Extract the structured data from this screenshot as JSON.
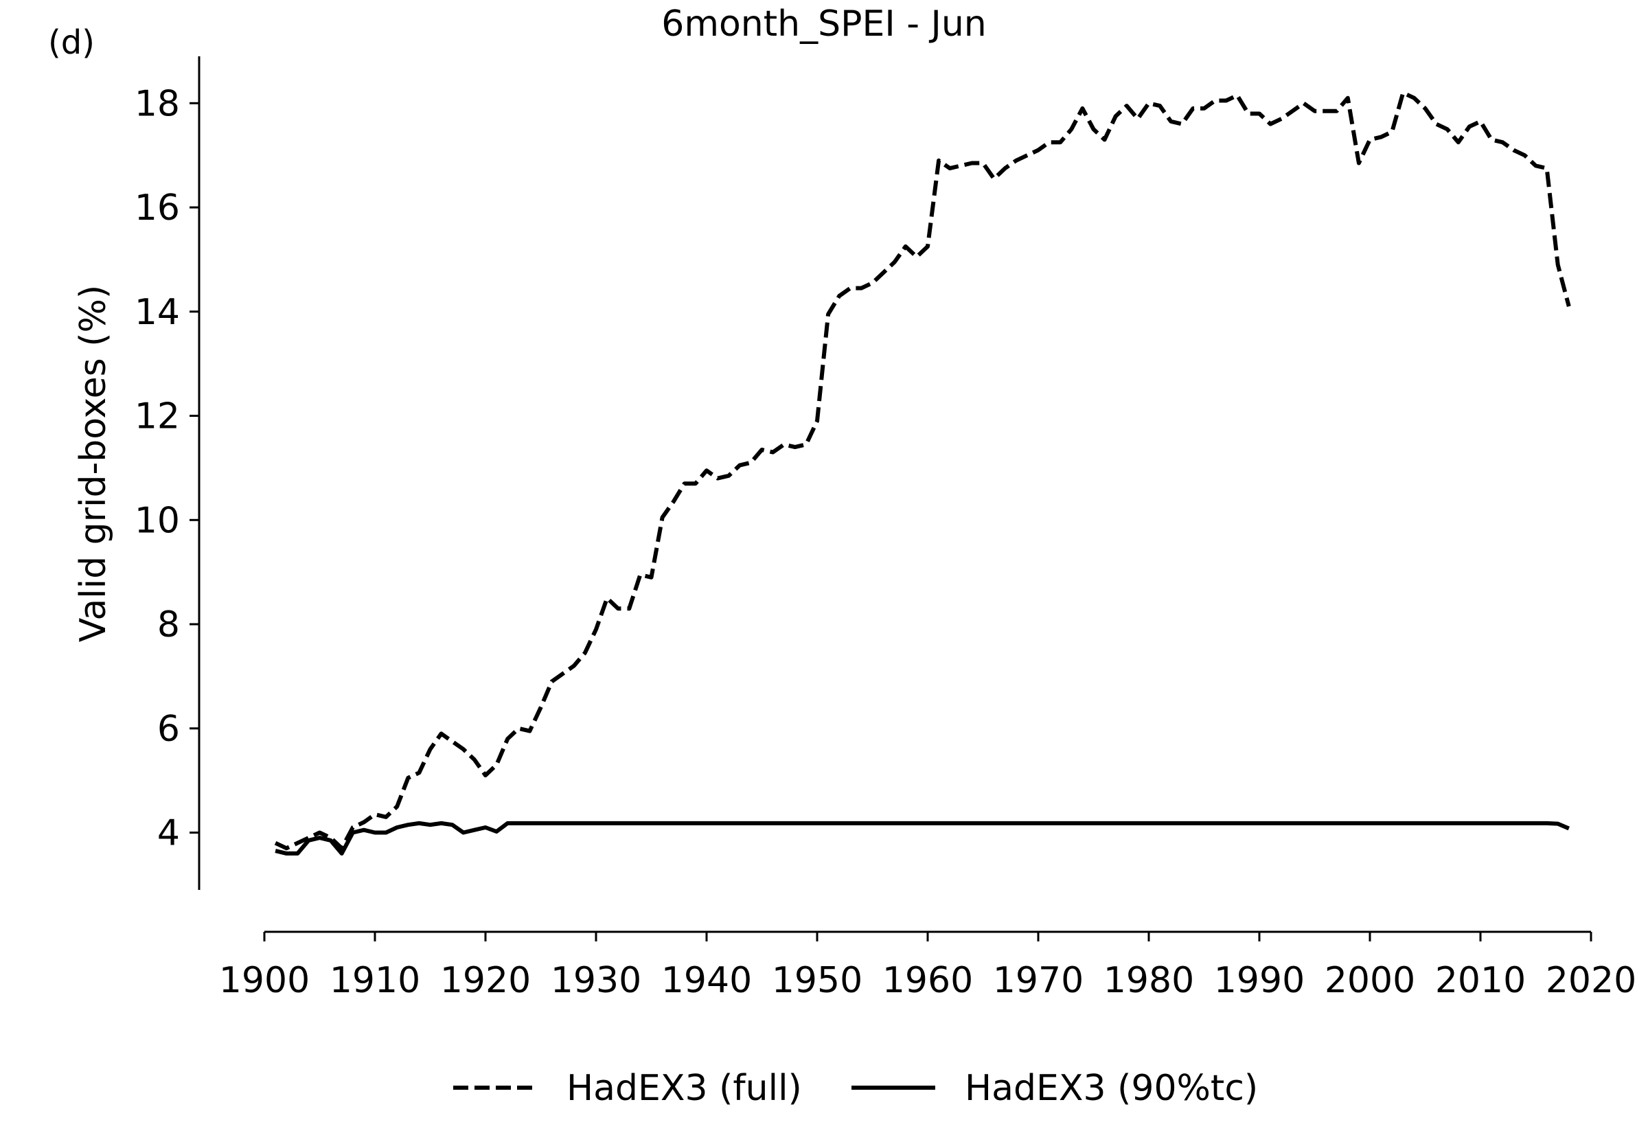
{
  "panel_label": "(d)",
  "chart_data": {
    "type": "line",
    "title": "6month_SPEI - Jun",
    "xlabel": "",
    "ylabel": "Valid grid-boxes (%)",
    "xlim": [
      1900,
      2020
    ],
    "ylim": [
      2.9,
      18.9
    ],
    "xticks": [
      1900,
      1910,
      1920,
      1930,
      1940,
      1950,
      1960,
      1970,
      1980,
      1990,
      2000,
      2010,
      2020
    ],
    "yticks": [
      4,
      6,
      8,
      10,
      12,
      14,
      16,
      18
    ],
    "grid": false,
    "legend_position": "bottom-center",
    "series": [
      {
        "name": "HadEX3 (full)",
        "style": "dashed",
        "color": "#000000",
        "x": [
          1901,
          1902,
          1903,
          1904,
          1905,
          1906,
          1907,
          1908,
          1909,
          1910,
          1911,
          1912,
          1913,
          1914,
          1915,
          1916,
          1917,
          1918,
          1919,
          1920,
          1921,
          1922,
          1923,
          1924,
          1925,
          1926,
          1927,
          1928,
          1929,
          1930,
          1931,
          1932,
          1933,
          1934,
          1935,
          1936,
          1937,
          1938,
          1939,
          1940,
          1941,
          1942,
          1943,
          1944,
          1945,
          1946,
          1947,
          1948,
          1949,
          1950,
          1951,
          1952,
          1953,
          1954,
          1955,
          1956,
          1957,
          1958,
          1959,
          1960,
          1961,
          1962,
          1963,
          1964,
          1965,
          1966,
          1967,
          1968,
          1969,
          1970,
          1971,
          1972,
          1973,
          1974,
          1975,
          1976,
          1977,
          1978,
          1979,
          1980,
          1981,
          1982,
          1983,
          1984,
          1985,
          1986,
          1987,
          1988,
          1989,
          1990,
          1991,
          1992,
          1993,
          1994,
          1995,
          1996,
          1997,
          1998,
          1999,
          2000,
          2001,
          2002,
          2003,
          2004,
          2005,
          2006,
          2007,
          2008,
          2009,
          2010,
          2011,
          2012,
          2013,
          2014,
          2015,
          2016,
          2017,
          2018
        ],
        "y": [
          3.8,
          3.7,
          3.8,
          3.9,
          4.0,
          3.9,
          3.7,
          4.1,
          4.2,
          4.35,
          4.3,
          4.5,
          5.05,
          5.15,
          5.6,
          5.9,
          5.75,
          5.6,
          5.4,
          5.1,
          5.3,
          5.8,
          6.0,
          5.95,
          6.4,
          6.9,
          7.05,
          7.2,
          7.45,
          7.9,
          8.5,
          8.3,
          8.3,
          8.95,
          8.9,
          10.05,
          10.35,
          10.7,
          10.7,
          10.95,
          10.8,
          10.85,
          11.05,
          11.1,
          11.35,
          11.3,
          11.45,
          11.4,
          11.45,
          11.9,
          13.95,
          14.3,
          14.45,
          14.45,
          14.55,
          14.75,
          14.95,
          15.25,
          15.05,
          15.25,
          16.9,
          16.75,
          16.8,
          16.85,
          16.85,
          16.55,
          16.75,
          16.9,
          17.0,
          17.1,
          17.25,
          17.25,
          17.5,
          17.9,
          17.5,
          17.3,
          17.75,
          17.95,
          17.7,
          18.0,
          17.95,
          17.65,
          17.6,
          17.9,
          17.9,
          18.05,
          18.05,
          18.15,
          17.8,
          17.8,
          17.6,
          17.7,
          17.85,
          18.0,
          17.85,
          17.85,
          17.85,
          18.1,
          16.85,
          17.3,
          17.35,
          17.45,
          18.2,
          18.1,
          17.9,
          17.6,
          17.5,
          17.25,
          17.55,
          17.65,
          17.3,
          17.25,
          17.1,
          17.0,
          16.8,
          16.75,
          14.9,
          14.1
        ]
      },
      {
        "name": "HadEX3 (90%tc)",
        "style": "solid",
        "color": "#000000",
        "x": [
          1901,
          1902,
          1903,
          1904,
          1905,
          1906,
          1907,
          1908,
          1909,
          1910,
          1911,
          1912,
          1913,
          1914,
          1915,
          1916,
          1917,
          1918,
          1919,
          1920,
          1921,
          1922,
          1923,
          1924,
          1925,
          1926,
          1927,
          1928,
          1929,
          1930,
          1931,
          1932,
          1933,
          1934,
          1935,
          1936,
          1937,
          1938,
          1939,
          1940,
          1941,
          1942,
          1943,
          1944,
          1945,
          1946,
          1947,
          1948,
          1949,
          1950,
          1955,
          1960,
          1965,
          1970,
          1975,
          1980,
          1985,
          1990,
          1995,
          2000,
          2005,
          2010,
          2015,
          2016,
          2017,
          2018
        ],
        "y": [
          3.65,
          3.6,
          3.6,
          3.85,
          3.9,
          3.85,
          3.6,
          4.0,
          4.05,
          4.0,
          4.0,
          4.1,
          4.15,
          4.18,
          4.15,
          4.18,
          4.15,
          4.0,
          4.05,
          4.1,
          4.02,
          4.18,
          4.18,
          4.18,
          4.18,
          4.18,
          4.18,
          4.18,
          4.18,
          4.18,
          4.18,
          4.18,
          4.18,
          4.18,
          4.18,
          4.18,
          4.18,
          4.18,
          4.18,
          4.18,
          4.18,
          4.18,
          4.18,
          4.18,
          4.18,
          4.18,
          4.18,
          4.18,
          4.18,
          4.18,
          4.18,
          4.18,
          4.18,
          4.18,
          4.18,
          4.18,
          4.18,
          4.18,
          4.18,
          4.18,
          4.18,
          4.18,
          4.18,
          4.18,
          4.17,
          4.08
        ]
      }
    ]
  }
}
